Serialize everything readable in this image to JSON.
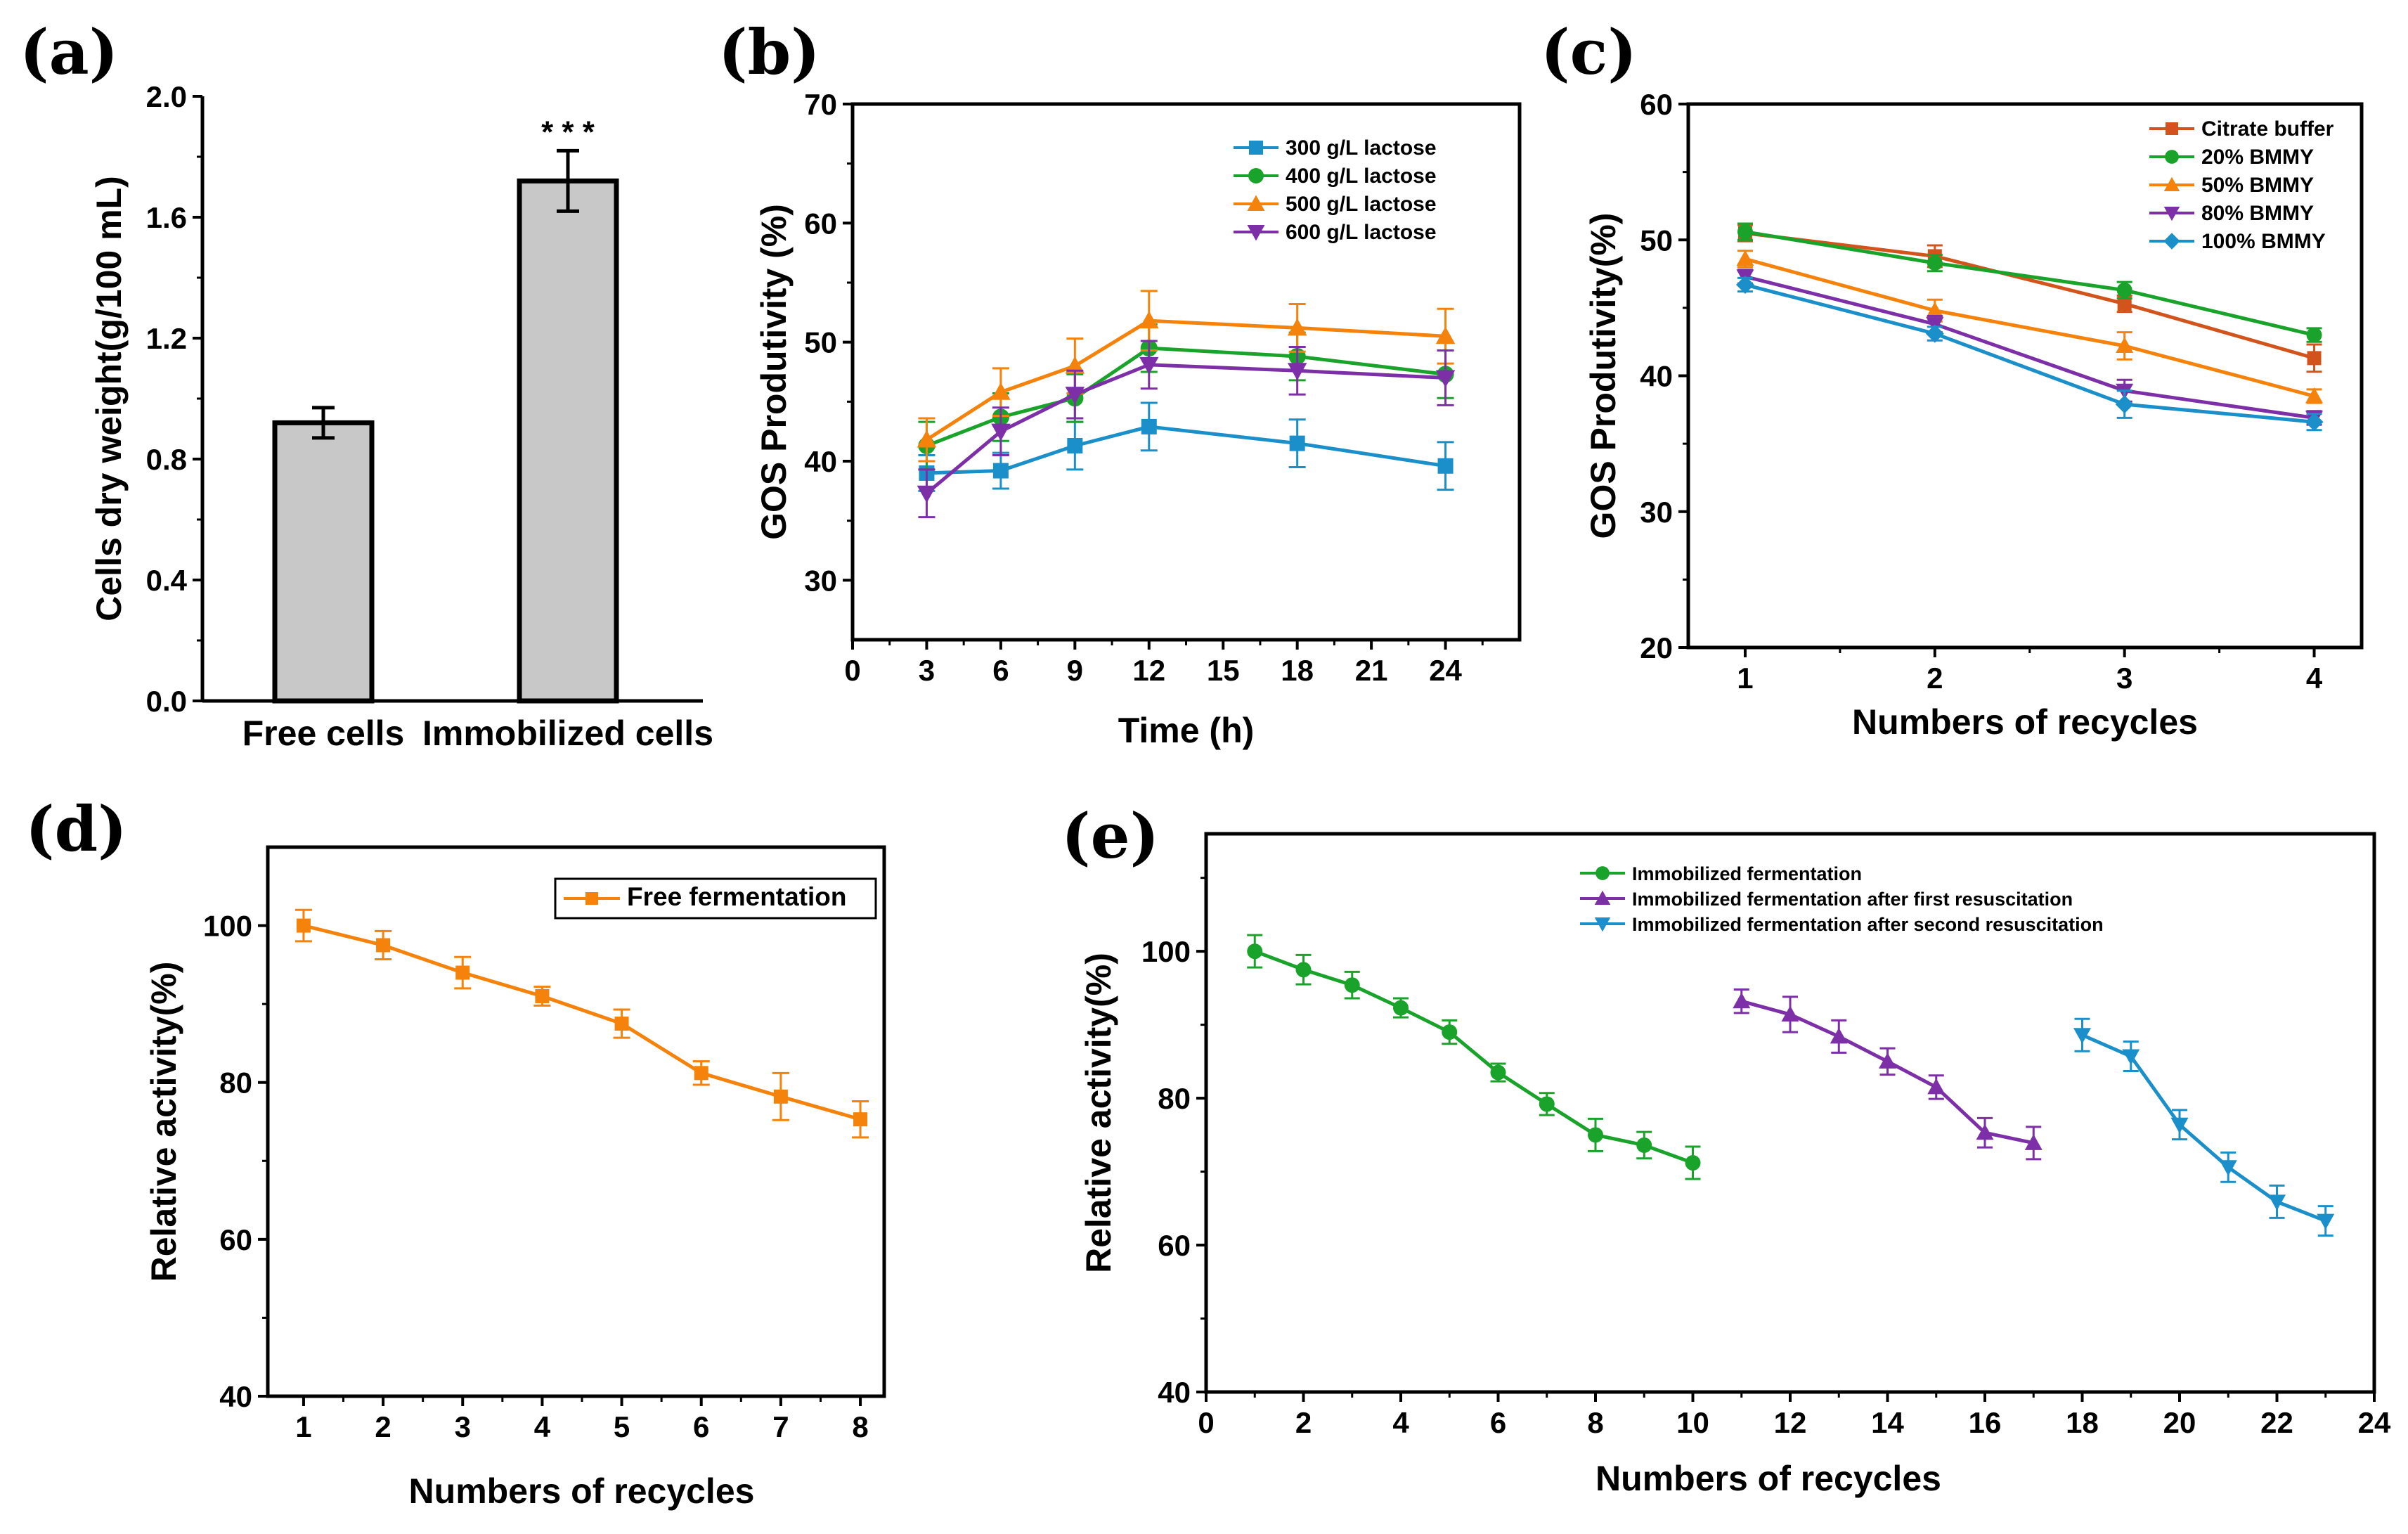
{
  "chart_data": [
    {
      "panel": "(a)",
      "type": "bar",
      "categories": [
        "Free cells",
        "Immobilized cells"
      ],
      "values": [
        0.92,
        1.72
      ],
      "errors": [
        0.05,
        0.1
      ],
      "annotation": "* * *",
      "xlabel": "",
      "ylabel": "Cells dry weight(g/100 mL)",
      "ylim": [
        0.0,
        2.0
      ],
      "yticks": [
        "0.0",
        "0.4",
        "0.8",
        "1.2",
        "1.6",
        "2.0"
      ],
      "bar_color": "#c8c8c8"
    },
    {
      "panel": "(b)",
      "type": "line",
      "x": [
        3,
        6,
        9,
        12,
        18,
        24
      ],
      "xlim": [
        0,
        27
      ],
      "xticks": [
        "0",
        "3",
        "6",
        "9",
        "12",
        "15",
        "18",
        "21",
        "24"
      ],
      "ylim": [
        25,
        70
      ],
      "yticks": [
        "30",
        "40",
        "50",
        "60",
        "70"
      ],
      "xlabel": "Time (h)",
      "ylabel": "GOS Produtivity (%)",
      "series": [
        {
          "name": "300 g/L lactose",
          "color": "#1b8fc9",
          "marker": "square",
          "values": [
            39.0,
            39.2,
            41.3,
            42.9,
            41.5,
            39.6
          ],
          "errors": [
            1.5,
            1.5,
            2.0,
            2.0,
            2.0,
            2.0
          ]
        },
        {
          "name": "400 g/L lactose",
          "color": "#1aa32a",
          "marker": "circle",
          "values": [
            41.3,
            43.7,
            45.3,
            49.5,
            48.8,
            47.3
          ],
          "errors": [
            2.0,
            2.0,
            2.0,
            2.0,
            2.0,
            2.0
          ]
        },
        {
          "name": "500 g/L lactose",
          "color": "#f5820a",
          "marker": "triangle-up",
          "values": [
            41.8,
            45.8,
            48.0,
            51.8,
            51.2,
            50.5
          ],
          "errors": [
            1.8,
            2.0,
            2.3,
            2.5,
            2.0,
            2.3
          ]
        },
        {
          "name": "600 g/L lactose",
          "color": "#7d2fa8",
          "marker": "triangle-down",
          "values": [
            37.3,
            42.5,
            45.6,
            48.1,
            47.6,
            47.0
          ],
          "errors": [
            2.0,
            2.0,
            2.0,
            2.0,
            2.0,
            2.3
          ]
        }
      ]
    },
    {
      "panel": "(c)",
      "type": "line",
      "x": [
        1,
        2,
        3,
        4
      ],
      "xlim": [
        0.7,
        4.25
      ],
      "xticks": [
        "1",
        "2",
        "3",
        "4"
      ],
      "ylim": [
        20,
        60
      ],
      "yticks": [
        "20",
        "30",
        "40",
        "50",
        "60"
      ],
      "xlabel": "Numbers of recycles",
      "ylabel": "GOS Produtivity(%)",
      "series": [
        {
          "name": "Citrate buffer",
          "color": "#d2541c",
          "marker": "square",
          "values": [
            50.5,
            48.8,
            45.3,
            41.3
          ],
          "errors": [
            0.6,
            0.8,
            0.6,
            1.0
          ]
        },
        {
          "name": "20% BMMY",
          "color": "#1aa32a",
          "marker": "circle",
          "values": [
            50.6,
            48.3,
            46.3,
            43.0
          ],
          "errors": [
            0.6,
            0.6,
            0.6,
            0.5
          ]
        },
        {
          "name": "50% BMMY",
          "color": "#f5820a",
          "marker": "triangle-up",
          "values": [
            48.6,
            44.8,
            42.2,
            38.5
          ],
          "errors": [
            0.6,
            0.8,
            1.0,
            0.5
          ]
        },
        {
          "name": "80% BMMY",
          "color": "#7d2fa8",
          "marker": "triangle-down",
          "values": [
            47.3,
            43.8,
            38.9,
            36.9
          ],
          "errors": [
            0.5,
            0.6,
            0.8,
            0.5
          ]
        },
        {
          "name": "100% BMMY",
          "color": "#1b8fc9",
          "marker": "diamond",
          "values": [
            46.7,
            43.1,
            37.9,
            36.6
          ],
          "errors": [
            0.5,
            0.5,
            1.0,
            0.6
          ]
        }
      ]
    },
    {
      "panel": "(d)",
      "type": "line",
      "x": [
        1,
        2,
        3,
        4,
        5,
        6,
        7,
        8
      ],
      "xlim": [
        0.55,
        8.3
      ],
      "xticks": [
        "1",
        "2",
        "3",
        "4",
        "5",
        "6",
        "7",
        "8"
      ],
      "ylim": [
        40,
        110
      ],
      "yticks": [
        "40",
        "60",
        "80",
        "100"
      ],
      "xlabel": "Numbers of recycles",
      "ylabel": "Relative activity(%)",
      "series": [
        {
          "name": "Free fermentation",
          "color": "#f5820a",
          "marker": "square",
          "values": [
            100,
            97.5,
            94.0,
            91.0,
            87.5,
            81.2,
            78.2,
            75.3
          ],
          "errors": [
            2.0,
            1.8,
            2.0,
            1.2,
            1.8,
            1.5,
            3.0,
            2.3
          ]
        }
      ]
    },
    {
      "panel": "(e)",
      "type": "line",
      "xlim": [
        0,
        24
      ],
      "xticks": [
        "0",
        "2",
        "4",
        "6",
        "8",
        "10",
        "12",
        "14",
        "16",
        "18",
        "20",
        "22",
        "24"
      ],
      "ylim": [
        40,
        116
      ],
      "yticks": [
        "40",
        "60",
        "80",
        "100"
      ],
      "xlabel": "Numbers of recycles",
      "ylabel": "Relative activity(%)",
      "series": [
        {
          "name": "Immobilized fermentation",
          "color": "#1aa32a",
          "marker": "circle",
          "x": [
            1,
            2,
            3,
            4,
            5,
            6,
            7,
            8,
            9,
            10
          ],
          "values": [
            100,
            97.5,
            95.4,
            92.3,
            89.0,
            83.5,
            79.2,
            75.0,
            73.6,
            71.2
          ],
          "errors": [
            2.2,
            2.0,
            1.8,
            1.3,
            1.6,
            1.2,
            1.5,
            2.2,
            1.8,
            2.2
          ]
        },
        {
          "name": "Immobilized fermentation after first resuscitation",
          "color": "#7d2fa8",
          "marker": "triangle-up",
          "x": [
            11,
            12,
            13,
            14,
            15,
            16,
            17
          ],
          "values": [
            93.2,
            91.4,
            88.4,
            85.0,
            81.5,
            75.3,
            73.9
          ],
          "errors": [
            1.6,
            2.4,
            2.2,
            1.8,
            1.6,
            2.0,
            2.2
          ]
        },
        {
          "name": "Immobilized fermentation after second resuscitation",
          "color": "#1b8fc9",
          "marker": "triangle-down",
          "x": [
            18,
            19,
            20,
            21,
            22,
            23
          ],
          "values": [
            88.6,
            85.7,
            76.4,
            70.6,
            65.9,
            63.3
          ],
          "errors": [
            2.2,
            2.0,
            2.0,
            2.0,
            2.2,
            2.0
          ]
        }
      ]
    }
  ]
}
